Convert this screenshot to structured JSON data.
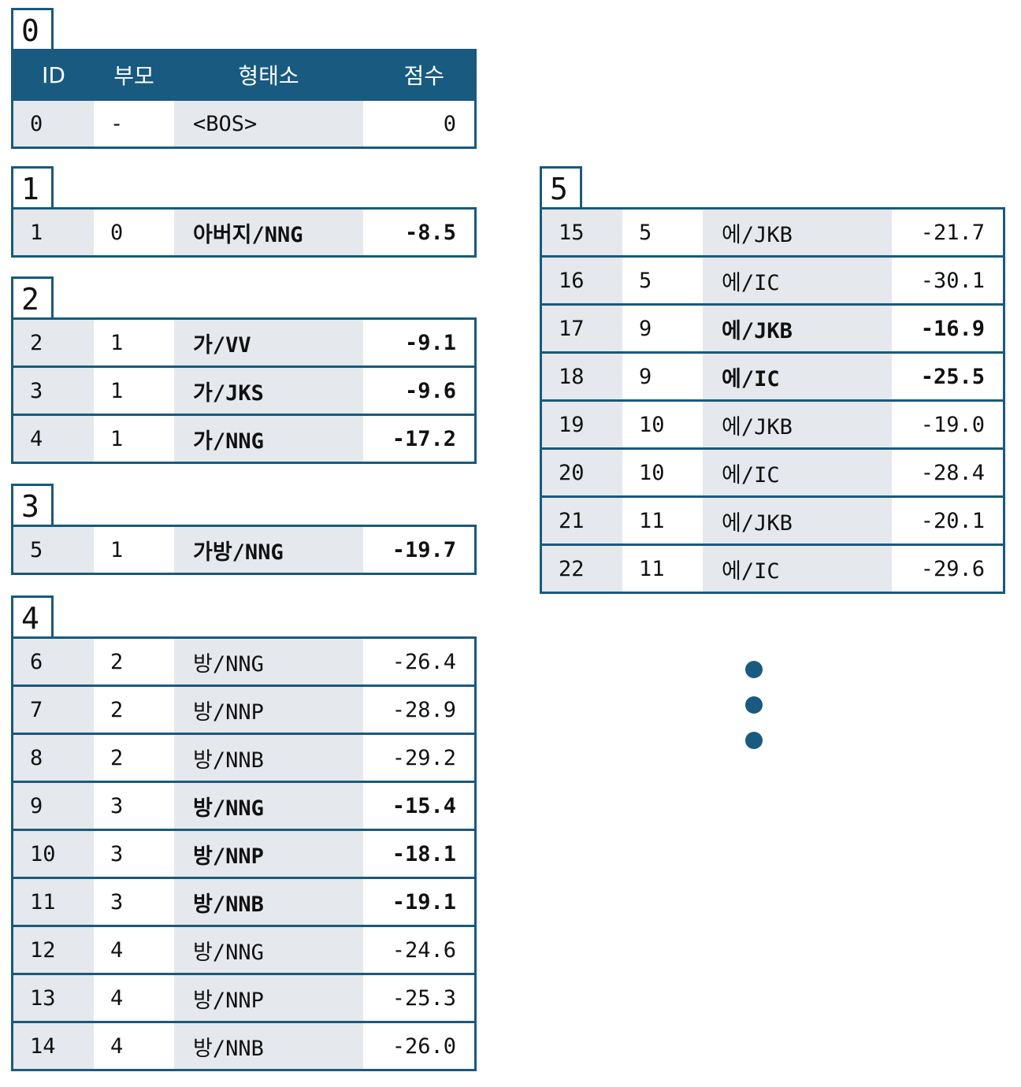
{
  "header": {
    "id": "ID",
    "parent": "부모",
    "morpheme": "형태소",
    "score": "점수"
  },
  "groups": [
    {
      "label": "0",
      "rows": [
        {
          "id": "0",
          "parent": "-",
          "morpheme": "<BOS>",
          "score": "0",
          "bold": false
        }
      ]
    },
    {
      "label": "1",
      "rows": [
        {
          "id": "1",
          "parent": "0",
          "morpheme": "아버지/NNG",
          "score": "-8.5",
          "bold": true
        }
      ]
    },
    {
      "label": "2",
      "rows": [
        {
          "id": "2",
          "parent": "1",
          "morpheme": "가/VV",
          "score": "-9.1",
          "bold": true
        },
        {
          "id": "3",
          "parent": "1",
          "morpheme": "가/JKS",
          "score": "-9.6",
          "bold": true
        },
        {
          "id": "4",
          "parent": "1",
          "morpheme": "가/NNG",
          "score": "-17.2",
          "bold": true
        }
      ]
    },
    {
      "label": "3",
      "rows": [
        {
          "id": "5",
          "parent": "1",
          "morpheme": "가방/NNG",
          "score": "-19.7",
          "bold": true
        }
      ]
    },
    {
      "label": "4",
      "rows": [
        {
          "id": "6",
          "parent": "2",
          "morpheme": "방/NNG",
          "score": "-26.4",
          "bold": false
        },
        {
          "id": "7",
          "parent": "2",
          "morpheme": "방/NNP",
          "score": "-28.9",
          "bold": false
        },
        {
          "id": "8",
          "parent": "2",
          "morpheme": "방/NNB",
          "score": "-29.2",
          "bold": false
        },
        {
          "id": "9",
          "parent": "3",
          "morpheme": "방/NNG",
          "score": "-15.4",
          "bold": true
        },
        {
          "id": "10",
          "parent": "3",
          "morpheme": "방/NNP",
          "score": "-18.1",
          "bold": true
        },
        {
          "id": "11",
          "parent": "3",
          "morpheme": "방/NNB",
          "score": "-19.1",
          "bold": true
        },
        {
          "id": "12",
          "parent": "4",
          "morpheme": "방/NNG",
          "score": "-24.6",
          "bold": false
        },
        {
          "id": "13",
          "parent": "4",
          "morpheme": "방/NNP",
          "score": "-25.3",
          "bold": false
        },
        {
          "id": "14",
          "parent": "4",
          "morpheme": "방/NNB",
          "score": "-26.0",
          "bold": false
        }
      ]
    },
    {
      "label": "5",
      "rows": [
        {
          "id": "15",
          "parent": "5",
          "morpheme": "에/JKB",
          "score": "-21.7",
          "bold": false
        },
        {
          "id": "16",
          "parent": "5",
          "morpheme": "에/IC",
          "score": "-30.1",
          "bold": false
        },
        {
          "id": "17",
          "parent": "9",
          "morpheme": "에/JKB",
          "score": "-16.9",
          "bold": true
        },
        {
          "id": "18",
          "parent": "9",
          "morpheme": "에/IC",
          "score": "-25.5",
          "bold": true
        },
        {
          "id": "19",
          "parent": "10",
          "morpheme": "에/JKB",
          "score": "-19.0",
          "bold": false
        },
        {
          "id": "20",
          "parent": "10",
          "morpheme": "에/IC",
          "score": "-28.4",
          "bold": false
        },
        {
          "id": "21",
          "parent": "11",
          "morpheme": "에/JKB",
          "score": "-20.1",
          "bold": false
        },
        {
          "id": "22",
          "parent": "11",
          "morpheme": "에/IC",
          "score": "-29.6",
          "bold": false
        }
      ]
    }
  ],
  "colors": {
    "accent": "#185a80",
    "cell_shade": "#e5e8ec"
  }
}
